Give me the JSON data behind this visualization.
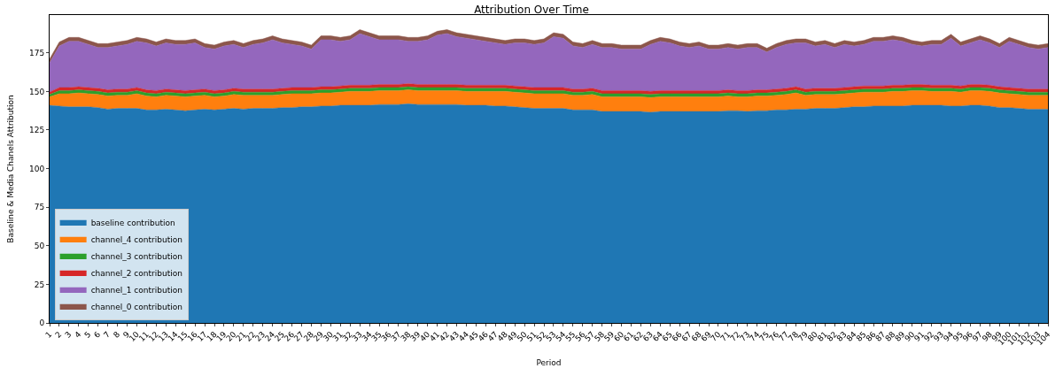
{
  "chart_data": {
    "type": "area",
    "stacked": true,
    "title": "Attribution Over Time",
    "xlabel": "Period",
    "ylabel": "Baseline & Media Chanels Attribution",
    "categories": [
      "1",
      "2",
      "3",
      "4",
      "5",
      "6",
      "7",
      "8",
      "9",
      "10",
      "11",
      "12",
      "13",
      "14",
      "15",
      "16",
      "17",
      "18",
      "19",
      "20",
      "21",
      "22",
      "23",
      "24",
      "25",
      "26",
      "27",
      "28",
      "29",
      "30",
      "31",
      "32",
      "33",
      "34",
      "35",
      "36",
      "37",
      "38",
      "39",
      "40",
      "41",
      "42",
      "43",
      "44",
      "45",
      "46",
      "47",
      "48",
      "49",
      "50",
      "51",
      "52",
      "53",
      "54",
      "55",
      "56",
      "57",
      "58",
      "59",
      "60",
      "61",
      "62",
      "63",
      "64",
      "65",
      "66",
      "67",
      "68",
      "69",
      "70",
      "71",
      "72",
      "73",
      "74",
      "75",
      "76",
      "77",
      "78",
      "79",
      "80",
      "81",
      "82",
      "83",
      "84",
      "85",
      "86",
      "87",
      "88",
      "89",
      "90",
      "91",
      "92",
      "93",
      "94",
      "95",
      "96",
      "97",
      "98",
      "99",
      "100",
      "101",
      "102",
      "103",
      "104"
    ],
    "series": [
      {
        "name": "baseline contribution",
        "color": "#1f77b4",
        "values": [
          141,
          140.5,
          140,
          140,
          140,
          139.5,
          138.5,
          139,
          139,
          139,
          138,
          138,
          138.5,
          138,
          137.5,
          138,
          138.5,
          138,
          138.5,
          139,
          138.5,
          139,
          139,
          139,
          139.5,
          139.5,
          140,
          140,
          140.5,
          140.5,
          141,
          141,
          141,
          141,
          141.5,
          141.5,
          141.5,
          142,
          141.5,
          141.5,
          141.5,
          141.5,
          141.5,
          141,
          141,
          141,
          140.5,
          140.5,
          140,
          139.5,
          139,
          139,
          139,
          139,
          138,
          138,
          138,
          137,
          137,
          137,
          137,
          137,
          136.5,
          137,
          137,
          137,
          137,
          137,
          137,
          137,
          137.5,
          137.5,
          137,
          137.5,
          137.5,
          138,
          138,
          138.5,
          138.5,
          139,
          139,
          139,
          139.5,
          140,
          140,
          140.5,
          140.5,
          140.5,
          140.5,
          141,
          141,
          141,
          141,
          140.5,
          140.5,
          141,
          141,
          140.5,
          139.5,
          139.5,
          139,
          138.5,
          138.5,
          138.5
        ]
      },
      {
        "name": "channel_4 contribution",
        "color": "#ff7f0e",
        "values": [
          5.5,
          8,
          8.5,
          9,
          8.5,
          8.5,
          8.5,
          8.5,
          8.5,
          9.5,
          9,
          8.5,
          9,
          9,
          9,
          9,
          9,
          8.5,
          8.5,
          9,
          9,
          8.5,
          8.5,
          8.5,
          8.5,
          9,
          8.5,
          8.5,
          8.5,
          8.5,
          8.5,
          9,
          9,
          9,
          9,
          9,
          9,
          9,
          9,
          9,
          9,
          9,
          9,
          9,
          9,
          9,
          9.5,
          9.5,
          9.5,
          9.5,
          9.5,
          9.5,
          9.5,
          9.5,
          9.5,
          9.5,
          10,
          9.5,
          9.5,
          9.5,
          9.5,
          9.5,
          9.5,
          9.5,
          9.5,
          9.5,
          9.5,
          9.5,
          9.5,
          9.5,
          9.5,
          9,
          9.5,
          9.5,
          9.5,
          9.5,
          10,
          10.5,
          9,
          9,
          9,
          9,
          9,
          9,
          9.5,
          9,
          9,
          9.5,
          9.5,
          9.5,
          9.5,
          9,
          9,
          9.5,
          9,
          9.5,
          9.5,
          9.5,
          9.5,
          9,
          9,
          9,
          9,
          9
        ]
      },
      {
        "name": "channel_3 contribution",
        "color": "#2ca02c",
        "values": [
          1.5,
          2,
          2,
          2,
          2,
          2,
          2,
          2,
          2,
          2,
          2,
          2,
          2,
          2,
          2,
          2,
          2,
          2,
          2,
          2,
          2,
          2,
          2,
          2,
          2,
          2,
          2,
          2,
          2,
          2,
          2,
          2,
          2,
          2,
          2,
          2,
          2,
          2,
          2,
          2,
          2,
          2,
          2,
          2,
          2,
          2,
          2,
          2,
          2,
          2,
          2,
          2,
          2,
          2,
          2,
          2,
          2,
          2,
          2,
          2,
          2,
          2,
          2,
          2,
          2,
          2,
          2,
          2,
          2,
          2,
          2,
          2,
          2,
          2,
          2,
          2,
          2,
          2,
          2,
          2,
          2,
          2,
          2,
          2,
          2,
          2,
          2,
          2,
          2,
          2,
          2,
          2,
          2,
          2,
          2,
          2,
          2,
          2,
          2,
          2,
          2,
          2,
          2,
          2
        ]
      },
      {
        "name": "channel_2 contribution",
        "color": "#d62728",
        "values": [
          1.5,
          2,
          2,
          2,
          2,
          2,
          2,
          2,
          2,
          2,
          2,
          2,
          2,
          2,
          2,
          2,
          2,
          2,
          2,
          2,
          2,
          2,
          2,
          2,
          2,
          2,
          2,
          2,
          2,
          2,
          2,
          2,
          2,
          2,
          2,
          2,
          2,
          2,
          2,
          2,
          2,
          2,
          2,
          2,
          2,
          2,
          2,
          2,
          2,
          2,
          2,
          2,
          2,
          2,
          2,
          2,
          2,
          2,
          2,
          2,
          2,
          2,
          2,
          2,
          2,
          2,
          2,
          2,
          2,
          2,
          2,
          2,
          2,
          2,
          2,
          2,
          2,
          2,
          2,
          2,
          2,
          2,
          2,
          2,
          2,
          2,
          2,
          2,
          2,
          2,
          2,
          2,
          2,
          2,
          2,
          2,
          2,
          2,
          2,
          2,
          2,
          2,
          2,
          2
        ]
      },
      {
        "name": "channel_1 contribution",
        "color": "#9467bd",
        "values": [
          19,
          27,
          30,
          29.5,
          28,
          26.5,
          27.5,
          28,
          29,
          30,
          30.5,
          29,
          30,
          29.5,
          30,
          30.5,
          27,
          27,
          28.5,
          28.5,
          27,
          29,
          30,
          32,
          29.5,
          28,
          27,
          25,
          30.5,
          30.5,
          29,
          29.5,
          33.5,
          31.5,
          29,
          29,
          29,
          27.5,
          28,
          29,
          32,
          33,
          31,
          30.5,
          29.5,
          28.5,
          27.5,
          26.5,
          28,
          28.5,
          28,
          29,
          33,
          32,
          28,
          27,
          28.5,
          28,
          28,
          27,
          27,
          27,
          30.5,
          32,
          31,
          29,
          28,
          29,
          27,
          27,
          27.5,
          27,
          28,
          27.5,
          24.5,
          27,
          28.5,
          28.5,
          30,
          27.5,
          28.5,
          26.5,
          28,
          26.5,
          27,
          29,
          29,
          29.5,
          28.5,
          26,
          25,
          26.5,
          26.5,
          30.5,
          26,
          27,
          29,
          27.5,
          25.5,
          30,
          28.5,
          27,
          26,
          27
        ]
      },
      {
        "name": "channel_0 contribution",
        "color": "#8c564b",
        "values": [
          2.5,
          2.5,
          2.5,
          2.5,
          2.5,
          2.5,
          2.5,
          2.5,
          2.5,
          2.5,
          2.5,
          2.5,
          2.5,
          2.5,
          2.5,
          2.5,
          2.5,
          2.5,
          2.5,
          2.5,
          2.5,
          2.5,
          2.5,
          2.5,
          2.5,
          2.5,
          2.5,
          2.5,
          2.5,
          2.5,
          2.5,
          2.5,
          2.5,
          2.5,
          2.5,
          2.5,
          2.5,
          2.5,
          2.5,
          2.5,
          2.5,
          2.5,
          2.5,
          2.5,
          2.5,
          2.5,
          2.5,
          2.5,
          2.5,
          2.5,
          2.5,
          2.5,
          2.5,
          2.5,
          2.5,
          2.5,
          2.5,
          2.5,
          2.5,
          2.5,
          2.5,
          2.5,
          2.5,
          2.5,
          2.5,
          2.5,
          2.5,
          2.5,
          2.5,
          2.5,
          2.5,
          2.5,
          2.5,
          2.5,
          2.5,
          2.5,
          2.5,
          2.5,
          2.5,
          2.5,
          2.5,
          2.5,
          2.5,
          2.5,
          2.5,
          2.5,
          2.5,
          2.5,
          2.5,
          2.5,
          2.5,
          2.5,
          2.5,
          2.5,
          2.5,
          2.5,
          2.5,
          2.5,
          2.5,
          2.5,
          2.5,
          2.5,
          2.5,
          2.5
        ]
      }
    ],
    "ylim": [
      0,
      199.5
    ],
    "yticks": [
      0,
      25,
      50,
      75,
      100,
      125,
      150,
      175
    ],
    "legend": "bottom left"
  }
}
